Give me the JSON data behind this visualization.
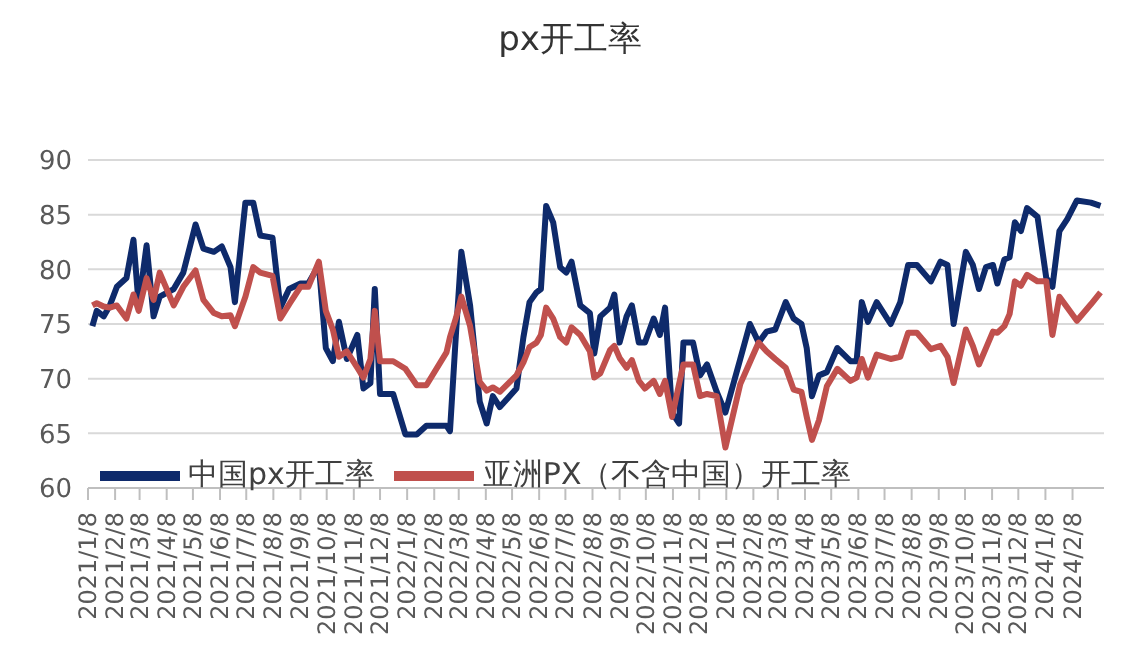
{
  "chart_data": {
    "type": "line",
    "title": "px开工率",
    "x": [
      "2021-01-13",
      "2021-01-18",
      "2021-01-26",
      "2021-02-02",
      "2021-02-10",
      "2021-02-21",
      "2021-03-01",
      "2021-03-07",
      "2021-03-16",
      "2021-03-24",
      "2021-03-31",
      "2021-04-16",
      "2021-04-27",
      "2021-05-11",
      "2021-05-20",
      "2021-06-01",
      "2021-06-10",
      "2021-06-20",
      "2021-06-25",
      "2021-07-07",
      "2021-07-16",
      "2021-07-24",
      "2021-08-07",
      "2021-08-16",
      "2021-08-26",
      "2021-09-08",
      "2021-09-17",
      "2021-09-29",
      "2021-10-07",
      "2021-10-15",
      "2021-10-22",
      "2021-10-31",
      "2021-11-12",
      "2021-11-19",
      "2021-11-27",
      "2021-12-02",
      "2021-12-08",
      "2021-12-23",
      "2022-01-06",
      "2022-01-19",
      "2022-01-30",
      "2022-02-22",
      "2022-02-26",
      "2022-03-05",
      "2022-03-11",
      "2022-03-21",
      "2022-04-01",
      "2022-04-09",
      "2022-04-16",
      "2022-04-24",
      "2022-05-13",
      "2022-05-21",
      "2022-05-28",
      "2022-06-05",
      "2022-06-10",
      "2022-06-16",
      "2022-06-24",
      "2022-07-02",
      "2022-07-09",
      "2022-07-15",
      "2022-07-25",
      "2022-08-05",
      "2022-08-10",
      "2022-08-17",
      "2022-08-28",
      "2022-09-02",
      "2022-09-08",
      "2022-09-16",
      "2022-09-22",
      "2022-09-30",
      "2022-10-07",
      "2022-10-17",
      "2022-10-24",
      "2022-10-30",
      "2022-11-07",
      "2022-11-15",
      "2022-11-20",
      "2022-12-01",
      "2022-12-09",
      "2022-12-17",
      "2022-12-28",
      "2023-01-07",
      "2023-01-24",
      "2023-02-04",
      "2023-02-14",
      "2023-02-23",
      "2023-03-05",
      "2023-03-17",
      "2023-03-26",
      "2023-04-04",
      "2023-04-10",
      "2023-04-16",
      "2023-04-24",
      "2023-05-03",
      "2023-05-15",
      "2023-05-30",
      "2023-06-06",
      "2023-06-12",
      "2023-06-19",
      "2023-06-29",
      "2023-07-15",
      "2023-07-26",
      "2023-08-04",
      "2023-08-14",
      "2023-08-30",
      "2023-09-10",
      "2023-09-18",
      "2023-09-25",
      "2023-10-09",
      "2023-10-17",
      "2023-10-24",
      "2023-11-01",
      "2023-11-09",
      "2023-11-14",
      "2023-11-22",
      "2023-11-28",
      "2023-12-04",
      "2023-12-11",
      "2023-12-18",
      "2023-12-30",
      "2024-01-09",
      "2024-01-16",
      "2024-01-24",
      "2024-02-02",
      "2024-02-13",
      "2024-02-29",
      "2024-03-11"
    ],
    "series": [
      {
        "name": "中国px开工率",
        "color": "#0e2a6b",
        "values": [
          74.8,
          76.2,
          75.7,
          76.7,
          78.4,
          79.2,
          82.7,
          76.7,
          82.2,
          75.7,
          77.5,
          78.2,
          79.7,
          84.1,
          81.9,
          81.6,
          82.1,
          80.2,
          77.0,
          86.1,
          86.1,
          83.1,
          82.9,
          76.5,
          78.2,
          78.7,
          78.7,
          80.4,
          72.8,
          71.6,
          75.2,
          71.8,
          74.0,
          69.1,
          69.6,
          78.2,
          68.6,
          68.6,
          64.9,
          64.9,
          65.7,
          65.7,
          65.2,
          74.3,
          81.6,
          76.7,
          67.9,
          65.9,
          68.4,
          67.4,
          69.1,
          73.8,
          77.0,
          77.9,
          78.2,
          85.8,
          84.3,
          80.2,
          79.7,
          80.7,
          76.7,
          76.0,
          72.3,
          75.7,
          76.5,
          77.7,
          73.3,
          75.7,
          76.7,
          73.3,
          73.3,
          75.5,
          74.0,
          76.5,
          66.9,
          65.9,
          73.3,
          73.3,
          70.3,
          71.3,
          68.8,
          66.9,
          71.8,
          75.0,
          73.3,
          74.3,
          74.5,
          77.0,
          75.5,
          75.0,
          72.8,
          68.4,
          70.3,
          70.6,
          72.8,
          71.6,
          71.6,
          77.0,
          75.2,
          77.0,
          75.0,
          77.0,
          80.4,
          80.4,
          78.9,
          80.7,
          80.4,
          75.0,
          81.6,
          80.4,
          78.2,
          80.2,
          80.4,
          78.7,
          80.9,
          81.1,
          84.3,
          83.5,
          85.6,
          84.8,
          79.2,
          78.4,
          83.5,
          84.6,
          86.3,
          86.1,
          85.8
        ]
      },
      {
        "name": "亚洲PX（不含中国）开工率",
        "color": "#c0504d",
        "values": [
          76.7,
          76.9,
          76.6,
          76.5,
          76.7,
          75.5,
          77.7,
          76.2,
          79.2,
          77.2,
          79.7,
          76.7,
          78.4,
          79.9,
          77.2,
          76.0,
          75.7,
          75.8,
          74.8,
          77.5,
          80.2,
          79.7,
          79.4,
          75.5,
          76.8,
          78.4,
          78.4,
          80.7,
          76.2,
          74.5,
          72.0,
          72.5,
          71.0,
          70.1,
          71.8,
          76.2,
          71.6,
          71.6,
          70.9,
          69.4,
          69.4,
          72.4,
          73.8,
          75.6,
          77.5,
          74.8,
          69.7,
          68.9,
          69.2,
          68.8,
          70.3,
          71.5,
          72.9,
          73.3,
          74.0,
          76.5,
          75.5,
          73.8,
          73.3,
          74.7,
          74.0,
          72.5,
          70.1,
          70.5,
          72.6,
          73.0,
          71.9,
          71.0,
          71.7,
          69.8,
          69.1,
          69.8,
          68.6,
          69.8,
          66.5,
          69.5,
          71.3,
          71.3,
          68.4,
          68.6,
          68.4,
          63.7,
          69.5,
          71.5,
          73.3,
          72.5,
          71.8,
          71.0,
          69.0,
          68.8,
          66.5,
          64.4,
          66.2,
          69.3,
          70.9,
          69.8,
          70.1,
          71.8,
          70.1,
          72.2,
          71.8,
          72.0,
          74.2,
          74.2,
          72.7,
          73.0,
          72.0,
          69.6,
          74.5,
          73.0,
          71.3,
          72.8,
          74.3,
          74.2,
          74.8,
          75.9,
          78.9,
          78.5,
          79.5,
          78.9,
          78.9,
          74.0,
          77.5,
          76.5,
          75.3,
          76.8,
          77.9
        ]
      }
    ],
    "xlim": [
      "2021-01-08",
      "2024-03-15"
    ],
    "xticks": [
      {
        "value": "2021-01-08",
        "label": "2021/1/8"
      },
      {
        "value": "2021-02-08",
        "label": "2021/2/8"
      },
      {
        "value": "2021-03-08",
        "label": "2021/3/8"
      },
      {
        "value": "2021-04-08",
        "label": "2021/4/8"
      },
      {
        "value": "2021-05-08",
        "label": "2021/5/8"
      },
      {
        "value": "2021-06-08",
        "label": "2021/6/8"
      },
      {
        "value": "2021-07-08",
        "label": "2021/7/8"
      },
      {
        "value": "2021-08-08",
        "label": "2021/8/8"
      },
      {
        "value": "2021-09-08",
        "label": "2021/9/8"
      },
      {
        "value": "2021-10-08",
        "label": "2021/10/8"
      },
      {
        "value": "2021-11-08",
        "label": "2021/11/8"
      },
      {
        "value": "2021-12-08",
        "label": "2021/12/8"
      },
      {
        "value": "2022-01-08",
        "label": "2022/1/8"
      },
      {
        "value": "2022-02-08",
        "label": "2022/2/8"
      },
      {
        "value": "2022-03-08",
        "label": "2022/3/8"
      },
      {
        "value": "2022-04-08",
        "label": "2022/4/8"
      },
      {
        "value": "2022-05-08",
        "label": "2022/5/8"
      },
      {
        "value": "2022-06-08",
        "label": "2022/6/8"
      },
      {
        "value": "2022-07-08",
        "label": "2022/7/8"
      },
      {
        "value": "2022-08-08",
        "label": "2022/8/8"
      },
      {
        "value": "2022-09-08",
        "label": "2022/9/8"
      },
      {
        "value": "2022-10-08",
        "label": "2022/10/8"
      },
      {
        "value": "2022-11-08",
        "label": "2022/11/8"
      },
      {
        "value": "2022-12-08",
        "label": "2022/12/8"
      },
      {
        "value": "2023-01-08",
        "label": "2023/1/8"
      },
      {
        "value": "2023-02-08",
        "label": "2023/2/8"
      },
      {
        "value": "2023-03-08",
        "label": "2023/3/8"
      },
      {
        "value": "2023-04-08",
        "label": "2023/4/8"
      },
      {
        "value": "2023-05-08",
        "label": "2023/5/8"
      },
      {
        "value": "2023-06-08",
        "label": "2023/6/8"
      },
      {
        "value": "2023-07-08",
        "label": "2023/7/8"
      },
      {
        "value": "2023-08-08",
        "label": "2023/8/8"
      },
      {
        "value": "2023-09-08",
        "label": "2023/9/8"
      },
      {
        "value": "2023-10-08",
        "label": "2023/10/8"
      },
      {
        "value": "2023-11-08",
        "label": "2023/11/8"
      },
      {
        "value": "2023-12-08",
        "label": "2023/12/8"
      },
      {
        "value": "2024-01-08",
        "label": "2024/1/8"
      },
      {
        "value": "2024-02-08",
        "label": "2024/2/8"
      }
    ],
    "ylim": [
      60,
      90
    ],
    "yticks": [
      60,
      65,
      70,
      75,
      80,
      85,
      90
    ],
    "grid": "y",
    "legend": "bottom",
    "marker": "none",
    "line_style": "solid"
  }
}
